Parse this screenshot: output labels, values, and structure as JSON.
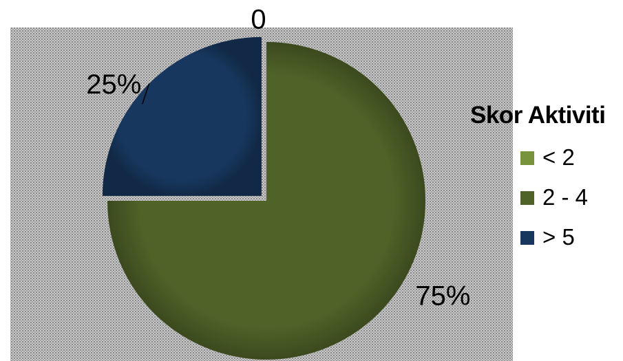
{
  "chart_data": {
    "type": "pie",
    "title": "",
    "legend_title": "Skor Aktiviti",
    "legend_position": "right",
    "categories": [
      "< 2",
      "2 - 4",
      "> 5"
    ],
    "values": [
      0,
      75,
      25
    ],
    "data_labels": [
      "0",
      "75%",
      "25%"
    ],
    "colors": [
      "#77933C",
      "#4F6228",
      "#17375E"
    ],
    "plot_background": "dotted-grey"
  }
}
